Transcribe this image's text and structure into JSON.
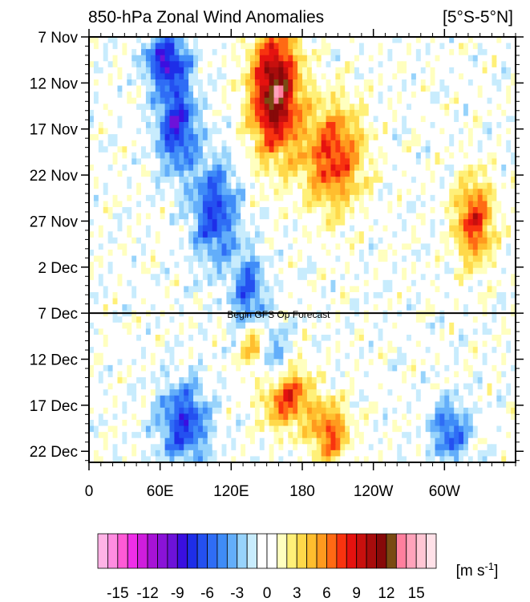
{
  "chart_data": {
    "type": "heatmap",
    "title": "850-hPa Zonal Wind Anomalies",
    "region": "[5°S-5°N]",
    "ylabel": "",
    "xlabel": "",
    "x_ticks": [
      "0",
      "60E",
      "120E",
      "180",
      "120W",
      "60W"
    ],
    "x_tick_values": [
      0,
      60,
      120,
      180,
      240,
      300
    ],
    "xlim": [
      0,
      360
    ],
    "y_ticks": [
      "7 Nov",
      "12 Nov",
      "17 Nov",
      "22 Nov",
      "27 Nov",
      "2 Dec",
      "7 Dec",
      "12 Dec",
      "17 Dec",
      "22 Dec"
    ],
    "y_tick_days": [
      0,
      5,
      10,
      15,
      20,
      25,
      30,
      35,
      40,
      45
    ],
    "ylim_days": [
      0,
      46.2
    ],
    "forecast_line": {
      "day": 30,
      "label": "Begin GFS Op Forecast"
    },
    "contour_interval": 3,
    "colorbar": {
      "unit_label": "[m s-1]",
      "tick_labels": [
        "-15",
        "-12",
        "-9",
        "-6",
        "-3",
        "0",
        "3",
        "6",
        "9",
        "12",
        "15"
      ],
      "tick_values": [
        -15,
        -12,
        -9,
        -6,
        -3,
        0,
        3,
        6,
        9,
        12,
        15
      ],
      "colors": [
        "#ffb3e6",
        "#ff8ce0",
        "#ff5ad6",
        "#ef2ee8",
        "#cf1ddd",
        "#a712d6",
        "#8a12d8",
        "#6d12d9",
        "#3a0fe0",
        "#1e2ee8",
        "#2450f0",
        "#2f6df5",
        "#3f8cf7",
        "#63aefa",
        "#97d3fb",
        "#c8ecfd",
        "#ffffff",
        "#ffffff",
        "#ffffbf",
        "#fff078",
        "#ffd94a",
        "#ffbe2e",
        "#ff9a1e",
        "#ff6a14",
        "#f8330f",
        "#e5120f",
        "#c8100e",
        "#a80c0c",
        "#870909",
        "#7a4a12",
        "#ff7f9e",
        "#ffa3bb",
        "#ffc6d4",
        "#ffe1e8"
      ]
    },
    "features": [
      {
        "type": "easterly",
        "lon": [
          48,
          82
        ],
        "day": [
          0,
          5
        ],
        "peak": -8
      },
      {
        "type": "easterly",
        "lon": [
          58,
          90
        ],
        "day": [
          5,
          14
        ],
        "peak": -8
      },
      {
        "type": "easterly",
        "lon": [
          88,
          124
        ],
        "day": [
          14,
          24
        ],
        "peak": -7
      },
      {
        "type": "easterly",
        "lon": [
          122,
          148
        ],
        "day": [
          24,
          32
        ],
        "peak": -6
      },
      {
        "type": "easterly",
        "lon": [
          140,
          168
        ],
        "day": [
          32,
          38
        ],
        "peak": -5
      },
      {
        "type": "easterly",
        "lon": [
          60,
          100
        ],
        "day": [
          38,
          46
        ],
        "peak": -7
      },
      {
        "type": "easterly",
        "lon": [
          290,
          320
        ],
        "day": [
          40,
          46
        ],
        "peak": -6
      },
      {
        "type": "westerly",
        "lon": [
          138,
          176
        ],
        "day": [
          0,
          12
        ],
        "peak": 13
      },
      {
        "type": "westerly",
        "lon": [
          182,
          230
        ],
        "day": [
          8,
          18
        ],
        "peak": 8
      },
      {
        "type": "westerly",
        "lon": [
          310,
          340
        ],
        "day": [
          16,
          24
        ],
        "peak": 8
      },
      {
        "type": "westerly",
        "lon": [
          130,
          150
        ],
        "day": [
          31,
          36
        ],
        "peak": 7
      },
      {
        "type": "westerly",
        "lon": [
          148,
          186
        ],
        "day": [
          36,
          42
        ],
        "peak": 8
      },
      {
        "type": "westerly",
        "lon": [
          188,
          218
        ],
        "day": [
          40,
          46
        ],
        "peak": 7
      }
    ]
  }
}
